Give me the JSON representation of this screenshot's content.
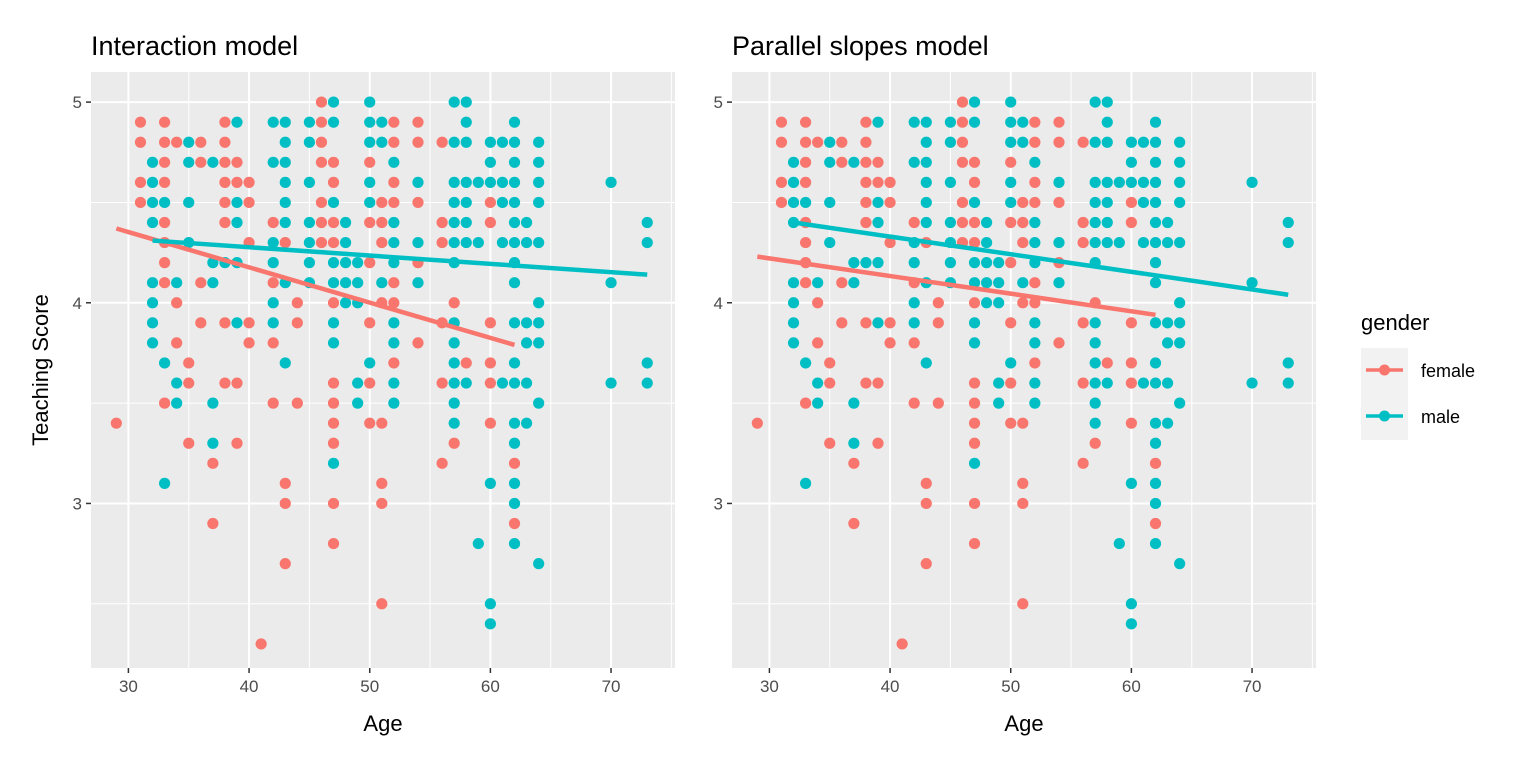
{
  "chart_data": [
    {
      "type": "scatter",
      "title": "Interaction model",
      "xlabel": "Age",
      "ylabel": "Teaching Score",
      "xlim": [
        26.9,
        75.3
      ],
      "ylim": [
        2.18,
        5.15
      ],
      "xticks": [
        30,
        40,
        50,
        60,
        70
      ],
      "yticks": [
        3,
        4,
        5
      ],
      "grid": true,
      "fit_lines": {
        "female": [
          [
            29,
            4.37
          ],
          [
            62,
            3.79
          ]
        ],
        "male": [
          [
            32,
            4.31
          ],
          [
            73,
            4.14
          ]
        ]
      }
    },
    {
      "type": "scatter",
      "title": "Parallel slopes model",
      "xlabel": "Age",
      "ylabel": "",
      "xlim": [
        26.9,
        75.3
      ],
      "ylim": [
        2.18,
        5.15
      ],
      "xticks": [
        30,
        40,
        50,
        60,
        70
      ],
      "yticks": [
        3,
        4,
        5
      ],
      "grid": true,
      "fit_lines": {
        "female": [
          [
            29,
            4.23
          ],
          [
            62,
            3.94
          ]
        ],
        "male": [
          [
            32,
            4.4
          ],
          [
            73,
            4.04
          ]
        ]
      }
    }
  ],
  "points": {
    "female": [
      [
        46,
        5.0
      ],
      [
        31,
        4.9
      ],
      [
        33,
        4.9
      ],
      [
        38,
        4.9
      ],
      [
        46,
        4.9
      ],
      [
        52,
        4.9
      ],
      [
        54,
        4.9
      ],
      [
        31,
        4.8
      ],
      [
        33,
        4.8
      ],
      [
        34,
        4.8
      ],
      [
        36,
        4.8
      ],
      [
        38,
        4.8
      ],
      [
        46,
        4.8
      ],
      [
        52,
        4.8
      ],
      [
        54,
        4.8
      ],
      [
        56,
        4.8
      ],
      [
        33,
        4.7
      ],
      [
        36,
        4.7
      ],
      [
        38,
        4.7
      ],
      [
        39,
        4.7
      ],
      [
        46,
        4.7
      ],
      [
        47,
        4.7
      ],
      [
        50,
        4.7
      ],
      [
        31,
        4.6
      ],
      [
        33,
        4.6
      ],
      [
        38,
        4.6
      ],
      [
        39,
        4.6
      ],
      [
        40,
        4.6
      ],
      [
        47,
        4.6
      ],
      [
        52,
        4.6
      ],
      [
        31,
        4.5
      ],
      [
        38,
        4.5
      ],
      [
        40,
        4.5
      ],
      [
        46,
        4.5
      ],
      [
        51,
        4.5
      ],
      [
        52,
        4.5
      ],
      [
        54,
        4.5
      ],
      [
        60,
        4.5
      ],
      [
        33,
        4.4
      ],
      [
        38,
        4.4
      ],
      [
        42,
        4.4
      ],
      [
        46,
        4.4
      ],
      [
        47,
        4.4
      ],
      [
        50,
        4.4
      ],
      [
        51,
        4.4
      ],
      [
        56,
        4.4
      ],
      [
        60,
        4.4
      ],
      [
        33,
        4.3
      ],
      [
        40,
        4.3
      ],
      [
        43,
        4.3
      ],
      [
        46,
        4.3
      ],
      [
        47,
        4.3
      ],
      [
        51,
        4.3
      ],
      [
        56,
        4.3
      ],
      [
        33,
        4.2
      ],
      [
        50,
        4.2
      ],
      [
        54,
        4.2
      ],
      [
        33,
        4.1
      ],
      [
        36,
        4.1
      ],
      [
        42,
        4.1
      ],
      [
        52,
        4.1
      ],
      [
        34,
        4.0
      ],
      [
        44,
        4.0
      ],
      [
        47,
        4.0
      ],
      [
        51,
        4.0
      ],
      [
        52,
        4.0
      ],
      [
        57,
        4.0
      ],
      [
        36,
        3.9
      ],
      [
        38,
        3.9
      ],
      [
        40,
        3.9
      ],
      [
        44,
        3.9
      ],
      [
        50,
        3.9
      ],
      [
        56,
        3.9
      ],
      [
        60,
        3.9
      ],
      [
        34,
        3.8
      ],
      [
        40,
        3.8
      ],
      [
        42,
        3.8
      ],
      [
        54,
        3.8
      ],
      [
        35,
        3.7
      ],
      [
        52,
        3.7
      ],
      [
        58,
        3.7
      ],
      [
        60,
        3.7
      ],
      [
        35,
        3.6
      ],
      [
        38,
        3.6
      ],
      [
        39,
        3.6
      ],
      [
        47,
        3.6
      ],
      [
        50,
        3.6
      ],
      [
        56,
        3.6
      ],
      [
        60,
        3.6
      ],
      [
        33,
        3.5
      ],
      [
        42,
        3.5
      ],
      [
        44,
        3.5
      ],
      [
        47,
        3.5
      ],
      [
        29,
        3.4
      ],
      [
        47,
        3.4
      ],
      [
        50,
        3.4
      ],
      [
        51,
        3.4
      ],
      [
        60,
        3.4
      ],
      [
        35,
        3.3
      ],
      [
        39,
        3.3
      ],
      [
        47,
        3.3
      ],
      [
        57,
        3.3
      ],
      [
        37,
        3.2
      ],
      [
        56,
        3.2
      ],
      [
        62,
        3.2
      ],
      [
        43,
        3.1
      ],
      [
        51,
        3.1
      ],
      [
        43,
        3.0
      ],
      [
        47,
        3.0
      ],
      [
        51,
        3.0
      ],
      [
        37,
        2.9
      ],
      [
        62,
        2.9
      ],
      [
        47,
        2.8
      ],
      [
        43,
        2.7
      ],
      [
        51,
        2.5
      ],
      [
        41,
        2.3
      ]
    ],
    "male": [
      [
        47,
        5.0
      ],
      [
        50,
        5.0
      ],
      [
        57,
        5.0
      ],
      [
        58,
        5.0
      ],
      [
        39,
        4.9
      ],
      [
        42,
        4.9
      ],
      [
        43,
        4.9
      ],
      [
        45,
        4.9
      ],
      [
        47,
        4.9
      ],
      [
        50,
        4.9
      ],
      [
        51,
        4.9
      ],
      [
        58,
        4.9
      ],
      [
        62,
        4.9
      ],
      [
        35,
        4.8
      ],
      [
        43,
        4.8
      ],
      [
        45,
        4.8
      ],
      [
        50,
        4.8
      ],
      [
        51,
        4.8
      ],
      [
        57,
        4.8
      ],
      [
        58,
        4.8
      ],
      [
        60,
        4.8
      ],
      [
        61,
        4.8
      ],
      [
        62,
        4.8
      ],
      [
        64,
        4.8
      ],
      [
        32,
        4.7
      ],
      [
        35,
        4.7
      ],
      [
        37,
        4.7
      ],
      [
        42,
        4.7
      ],
      [
        43,
        4.7
      ],
      [
        52,
        4.7
      ],
      [
        60,
        4.7
      ],
      [
        62,
        4.7
      ],
      [
        64,
        4.7
      ],
      [
        32,
        4.6
      ],
      [
        43,
        4.6
      ],
      [
        45,
        4.6
      ],
      [
        50,
        4.6
      ],
      [
        54,
        4.6
      ],
      [
        57,
        4.6
      ],
      [
        58,
        4.6
      ],
      [
        59,
        4.6
      ],
      [
        60,
        4.6
      ],
      [
        61,
        4.6
      ],
      [
        62,
        4.6
      ],
      [
        64,
        4.6
      ],
      [
        70,
        4.6
      ],
      [
        32,
        4.5
      ],
      [
        33,
        4.5
      ],
      [
        35,
        4.5
      ],
      [
        39,
        4.5
      ],
      [
        43,
        4.5
      ],
      [
        47,
        4.5
      ],
      [
        50,
        4.5
      ],
      [
        57,
        4.5
      ],
      [
        58,
        4.5
      ],
      [
        61,
        4.5
      ],
      [
        62,
        4.5
      ],
      [
        64,
        4.5
      ],
      [
        32,
        4.4
      ],
      [
        39,
        4.4
      ],
      [
        43,
        4.4
      ],
      [
        45,
        4.4
      ],
      [
        48,
        4.4
      ],
      [
        52,
        4.4
      ],
      [
        57,
        4.4
      ],
      [
        58,
        4.4
      ],
      [
        62,
        4.4
      ],
      [
        63,
        4.4
      ],
      [
        73,
        4.4
      ],
      [
        35,
        4.3
      ],
      [
        42,
        4.3
      ],
      [
        45,
        4.3
      ],
      [
        48,
        4.3
      ],
      [
        52,
        4.3
      ],
      [
        54,
        4.3
      ],
      [
        57,
        4.3
      ],
      [
        58,
        4.3
      ],
      [
        59,
        4.3
      ],
      [
        61,
        4.3
      ],
      [
        62,
        4.3
      ],
      [
        63,
        4.3
      ],
      [
        64,
        4.3
      ],
      [
        73,
        4.3
      ],
      [
        37,
        4.2
      ],
      [
        38,
        4.2
      ],
      [
        39,
        4.2
      ],
      [
        42,
        4.2
      ],
      [
        45,
        4.2
      ],
      [
        47,
        4.2
      ],
      [
        48,
        4.2
      ],
      [
        49,
        4.2
      ],
      [
        52,
        4.2
      ],
      [
        57,
        4.2
      ],
      [
        62,
        4.2
      ],
      [
        32,
        4.1
      ],
      [
        34,
        4.1
      ],
      [
        37,
        4.1
      ],
      [
        43,
        4.1
      ],
      [
        45,
        4.1
      ],
      [
        47,
        4.1
      ],
      [
        48,
        4.1
      ],
      [
        49,
        4.1
      ],
      [
        51,
        4.1
      ],
      [
        54,
        4.1
      ],
      [
        62,
        4.1
      ],
      [
        70,
        4.1
      ],
      [
        32,
        4.0
      ],
      [
        42,
        4.0
      ],
      [
        48,
        4.0
      ],
      [
        49,
        4.0
      ],
      [
        64,
        4.0
      ],
      [
        32,
        3.9
      ],
      [
        39,
        3.9
      ],
      [
        42,
        3.9
      ],
      [
        47,
        3.9
      ],
      [
        52,
        3.9
      ],
      [
        57,
        3.9
      ],
      [
        62,
        3.9
      ],
      [
        63,
        3.9
      ],
      [
        64,
        3.9
      ],
      [
        32,
        3.8
      ],
      [
        47,
        3.8
      ],
      [
        52,
        3.8
      ],
      [
        57,
        3.8
      ],
      [
        63,
        3.8
      ],
      [
        64,
        3.8
      ],
      [
        33,
        3.7
      ],
      [
        43,
        3.7
      ],
      [
        50,
        3.7
      ],
      [
        57,
        3.7
      ],
      [
        62,
        3.7
      ],
      [
        73,
        3.7
      ],
      [
        34,
        3.6
      ],
      [
        49,
        3.6
      ],
      [
        52,
        3.6
      ],
      [
        57,
        3.6
      ],
      [
        58,
        3.6
      ],
      [
        61,
        3.6
      ],
      [
        62,
        3.6
      ],
      [
        63,
        3.6
      ],
      [
        70,
        3.6
      ],
      [
        73,
        3.6
      ],
      [
        34,
        3.5
      ],
      [
        37,
        3.5
      ],
      [
        49,
        3.5
      ],
      [
        52,
        3.5
      ],
      [
        57,
        3.5
      ],
      [
        64,
        3.5
      ],
      [
        57,
        3.4
      ],
      [
        62,
        3.4
      ],
      [
        63,
        3.4
      ],
      [
        37,
        3.3
      ],
      [
        62,
        3.3
      ],
      [
        47,
        3.2
      ],
      [
        33,
        3.1
      ],
      [
        60,
        3.1
      ],
      [
        62,
        3.1
      ],
      [
        62,
        3.0
      ],
      [
        59,
        2.8
      ],
      [
        62,
        2.8
      ],
      [
        64,
        2.7
      ],
      [
        60,
        2.5
      ],
      [
        60,
        2.4
      ]
    ]
  },
  "legend": {
    "title": "gender",
    "placement": "right",
    "entries": [
      {
        "label": "female",
        "color": "#F8766D"
      },
      {
        "label": "male",
        "color": "#00BFC4"
      }
    ]
  },
  "colors": {
    "female": "#F8766D",
    "male": "#00BFC4",
    "panel_background": "#EBEBEB",
    "grid": "#FFFFFF"
  }
}
